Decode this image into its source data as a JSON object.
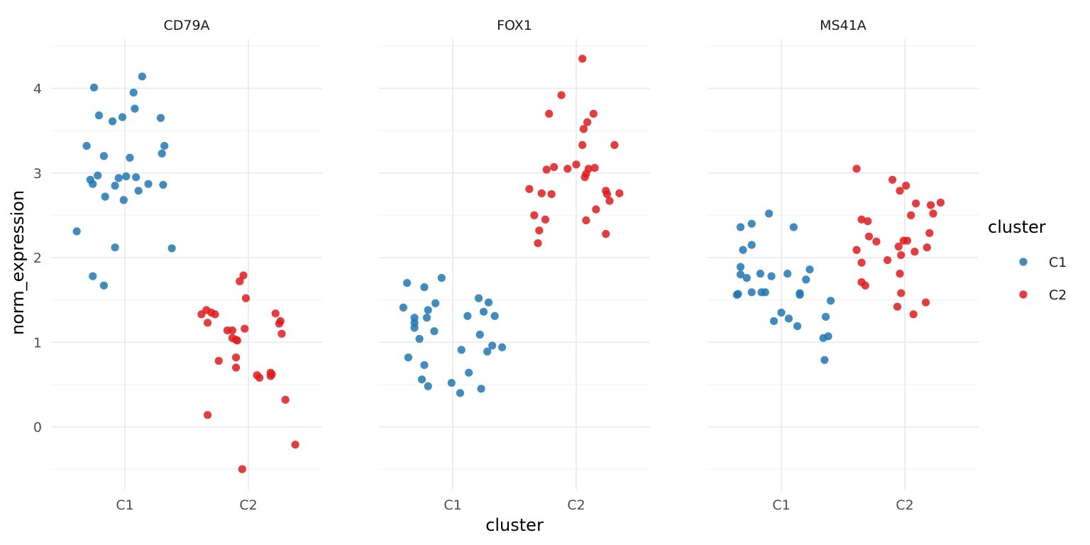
{
  "chart_data": {
    "type": "scatter",
    "facet_by": "gene",
    "xlabel": "cluster",
    "ylabel": "norm_expression",
    "categories": [
      "C1",
      "C2"
    ],
    "ylim": [
      -0.75,
      4.6
    ],
    "yticks": [
      0,
      1,
      2,
      3,
      4
    ],
    "grid": true,
    "jitter": true,
    "legend": {
      "title": "cluster",
      "position": "right",
      "entries": [
        {
          "label": "C1",
          "color": "#1F78B4"
        },
        {
          "label": "C2",
          "color": "#E31A1C"
        }
      ]
    },
    "panels": [
      {
        "title": "CD79A",
        "series": [
          {
            "name": "C1",
            "color": "#1F78B4",
            "points": [
              [
                -0.39,
                2.31
              ],
              [
                -0.31,
                3.32
              ],
              [
                -0.28,
                2.92
              ],
              [
                -0.26,
                2.87
              ],
              [
                -0.25,
                4.01
              ],
              [
                -0.26,
                1.78
              ],
              [
                -0.27,
                2.92
              ],
              [
                -0.27,
                2.86
              ],
              [
                -0.27,
                2.92
              ],
              [
                -0.27,
                2.87
              ],
              [
                -0.27,
                2.97
              ],
              [
                -0.27,
                2.92
              ],
              [
                -0.27,
                2.87
              ],
              [
                -0.27,
                2.92
              ],
              [
                -0.27,
                2.92
              ],
              [
                -0.27,
                2.92
              ],
              [
                -0.27,
                2.92
              ],
              [
                -0.27,
                2.92
              ],
              [
                -0.27,
                2.92
              ],
              [
                -0.27,
                2.92
              ],
              [
                -0.27,
                2.92
              ],
              [
                -0.27,
                2.92
              ],
              [
                -0.27,
                2.92
              ],
              [
                -0.27,
                2.92
              ],
              [
                -0.27,
                2.92
              ],
              [
                -0.27,
                2.92
              ],
              [
                -0.27,
                2.92
              ],
              [
                -0.27,
                2.92
              ],
              [
                -0.27,
                2.92
              ],
              [
                -0.27,
                2.92
              ],
              [
                -0.22,
                2.97
              ],
              [
                -0.21,
                3.68
              ],
              [
                -0.17,
                1.67
              ],
              [
                -0.17,
                3.2
              ],
              [
                -0.16,
                2.72
              ],
              [
                -0.16,
                3.2
              ],
              [
                -0.16,
                2.72
              ],
              [
                -0.16,
                3.2
              ],
              [
                -0.16,
                2.72
              ],
              [
                -0.16,
                3.2
              ],
              [
                -0.16,
                2.72
              ],
              [
                -0.16,
                3.2
              ],
              [
                -0.16,
                2.72
              ],
              [
                -0.16,
                3.2
              ],
              [
                -0.16,
                2.72
              ],
              [
                -0.16,
                3.2
              ],
              [
                -0.16,
                2.72
              ],
              [
                -0.16,
                3.2
              ],
              [
                -0.16,
                2.72
              ],
              [
                -0.16,
                3.2
              ],
              [
                -0.16,
                2.72
              ],
              [
                -0.16,
                3.2
              ],
              [
                -0.16,
                2.72
              ],
              [
                -0.16,
                3.2
              ],
              [
                -0.16,
                2.72
              ],
              [
                -0.16,
                3.2
              ],
              [
                -0.16,
                2.72
              ],
              [
                -0.16,
                3.2
              ],
              [
                -0.16,
                2.72
              ],
              [
                -0.16,
                3.2
              ],
              [
                -0.16,
                2.72
              ],
              [
                -0.16,
                3.2
              ],
              [
                -0.16,
                2.72
              ],
              [
                -0.16,
                3.2
              ],
              [
                -0.16,
                2.72
              ],
              [
                -0.16,
                3.2
              ],
              [
                -0.16,
                2.72
              ],
              [
                -0.16,
                3.2
              ],
              [
                -0.16,
                2.72
              ],
              [
                -0.16,
                3.2
              ],
              [
                -0.16,
                2.72
              ],
              [
                -0.16,
                3.2
              ],
              [
                -0.16,
                2.72
              ],
              [
                -0.16,
                3.2
              ],
              [
                -0.16,
                2.72
              ],
              [
                -0.16,
                3.2
              ],
              [
                -0.16,
                2.72
              ],
              [
                -0.16,
                3.2
              ],
              [
                -0.16,
                2.72
              ],
              [
                -0.16,
                3.2
              ],
              [
                -0.16,
                2.72
              ],
              [
                -0.16,
                3.2
              ],
              [
                -0.16,
                2.72
              ],
              [
                -0.16,
                3.2
              ],
              [
                -0.16,
                2.72
              ],
              [
                -0.16,
                3.2
              ],
              [
                -0.16,
                2.72
              ],
              [
                -0.16,
                3.2
              ],
              [
                -0.16,
                2.72
              ],
              [
                -0.16,
                3.2
              ],
              [
                -0.16,
                2.72
              ],
              [
                -0.16,
                3.2
              ],
              [
                -0.16,
                2.72
              ],
              [
                -0.16,
                3.2
              ],
              [
                -0.16,
                2.72
              ]
            ]
          }
        ]
      }
    ]
  }
}
